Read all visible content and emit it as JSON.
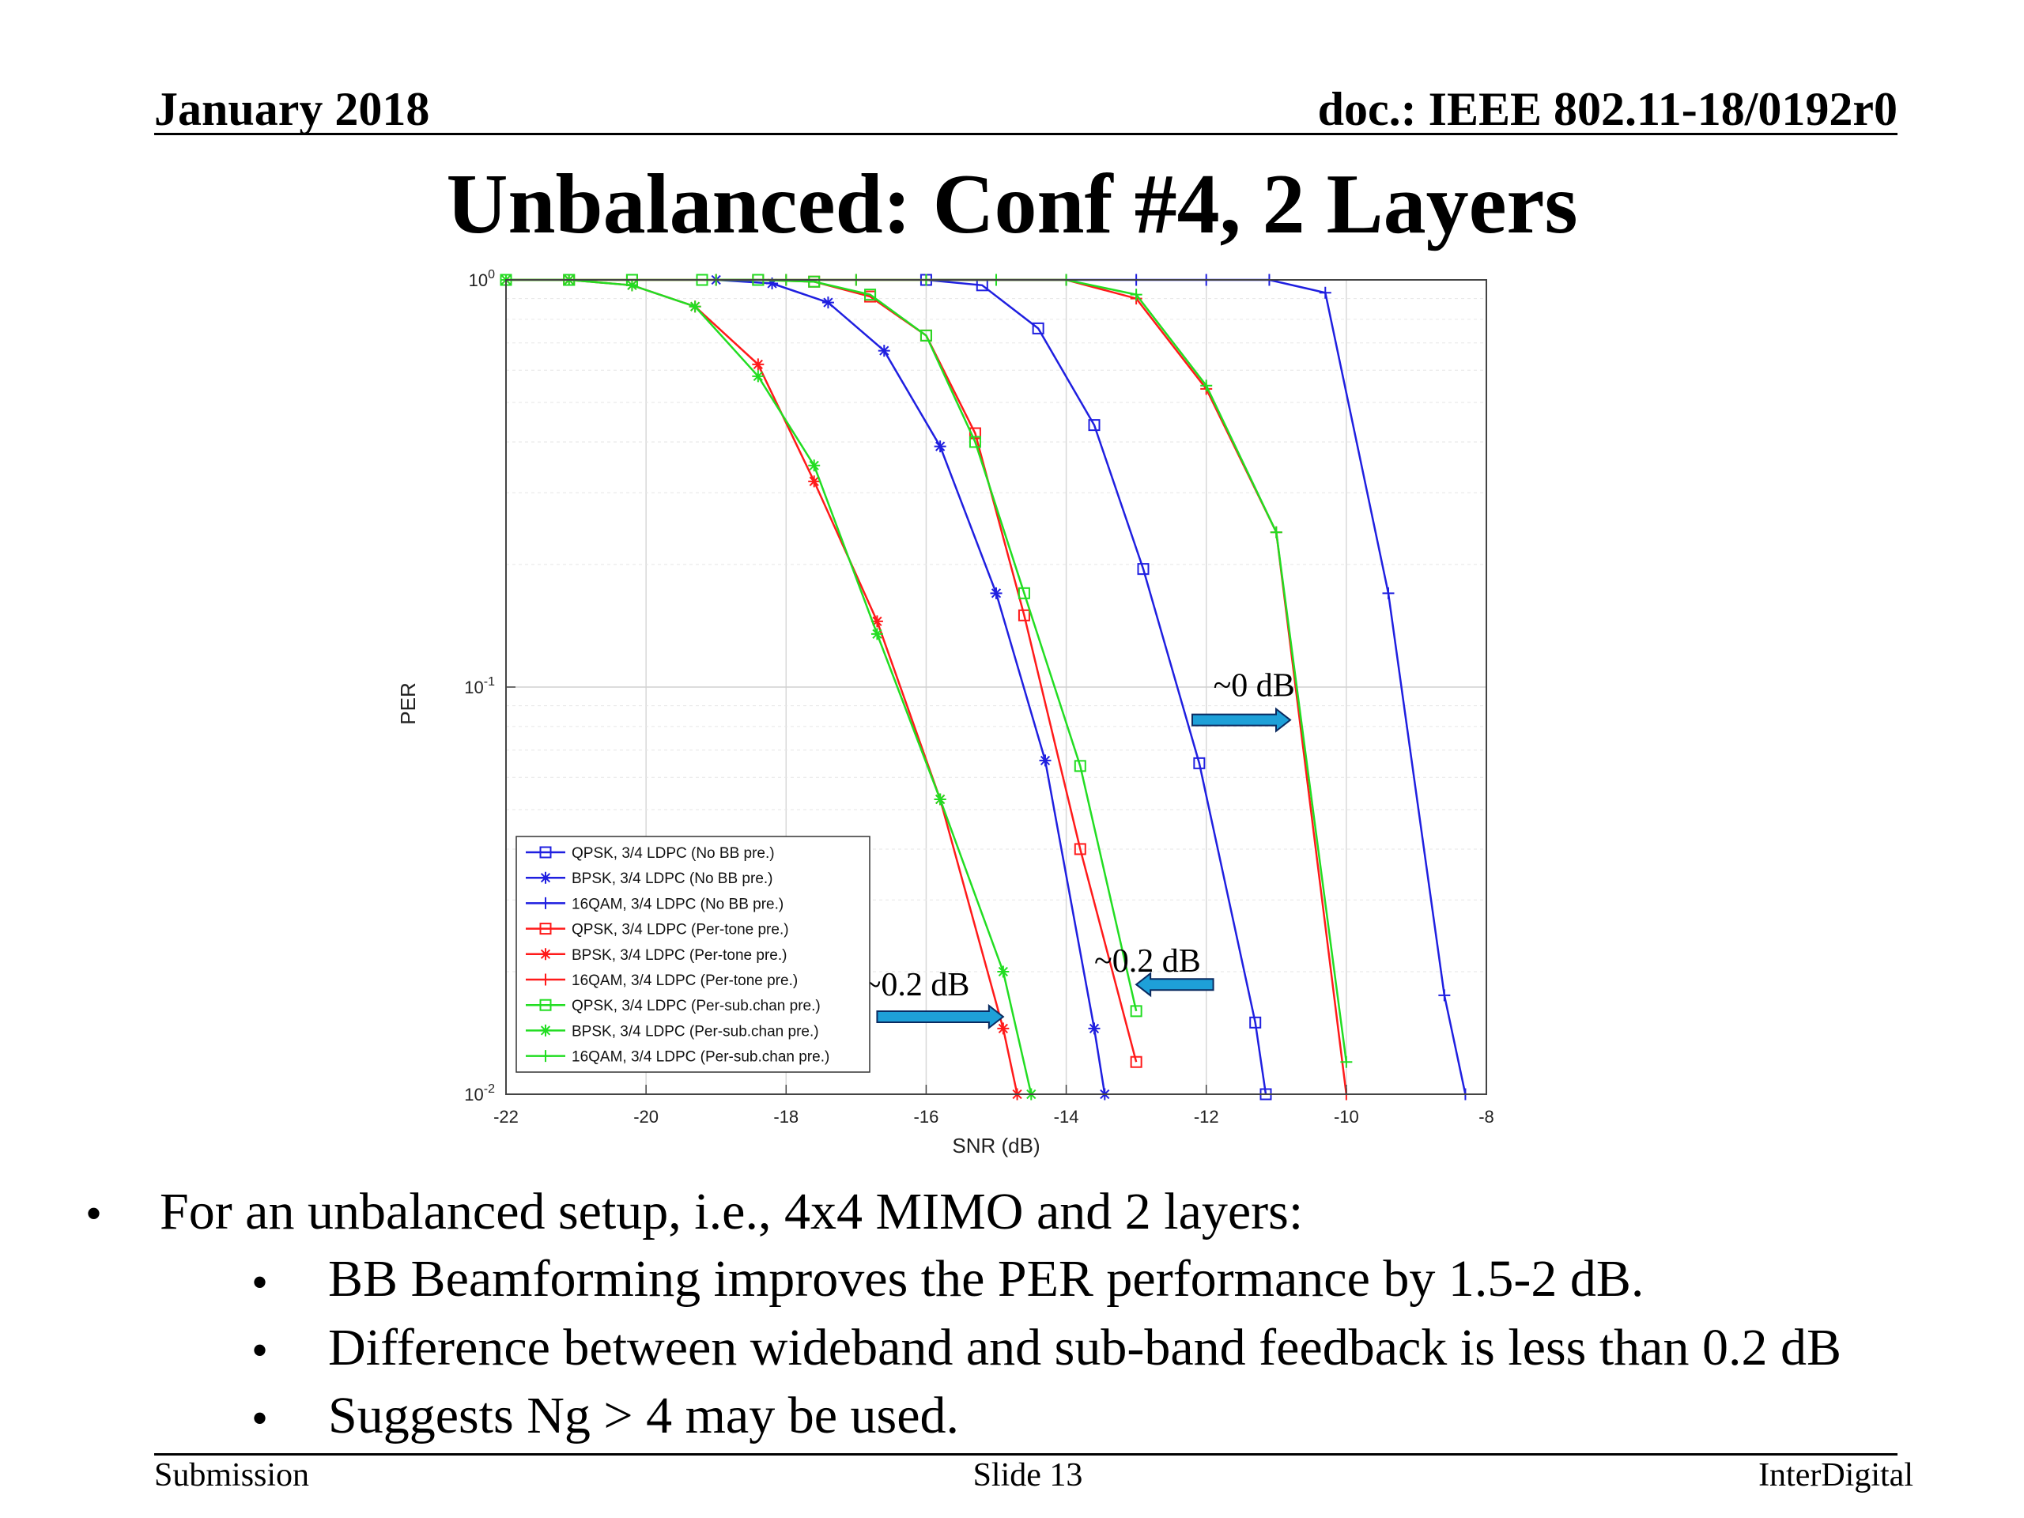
{
  "header": {
    "date": "January 2018",
    "doc": "doc.: IEEE 802.11-18/0192r0"
  },
  "title": "Unbalanced: Conf #4, 2 Layers",
  "bullets": {
    "main": "For an unbalanced setup, i.e., 4x4 MIMO and 2 layers:",
    "sub": [
      "BB Beamforming improves the PER performance by 1.5-2 dB.",
      "Difference between wideband and sub-band feedback is less than 0.2 dB",
      "Suggests Ng > 4 may be used."
    ]
  },
  "footer": {
    "left": "Submission",
    "center": "Slide 13",
    "right": "InterDigital"
  },
  "chart_data": {
    "type": "line",
    "xlabel": "SNR (dB)",
    "ylabel": "PER",
    "xlim": [
      -22,
      -8
    ],
    "ylim": [
      0.01,
      1
    ],
    "yscale": "log",
    "xticks": [
      "-22",
      "-20",
      "-18",
      "-16",
      "-14",
      "-12",
      "-10",
      "-8"
    ],
    "yticks": [
      {
        "value": 1,
        "base": "10",
        "exp": "0"
      },
      {
        "value": 0.1,
        "base": "10",
        "exp": "-1"
      },
      {
        "value": 0.01,
        "base": "10",
        "exp": "-2"
      }
    ],
    "grid": true,
    "legend": "lower-left",
    "series": [
      {
        "name": "QPSK, 3/4 LDPC (No BB pre.)",
        "color": "#1f1fe0",
        "marker": "square",
        "x": [
          -16,
          -15.2,
          -14.4,
          -13.6,
          -12.9,
          -12.1,
          -11.3,
          -11.15
        ],
        "y": [
          1.0,
          0.97,
          0.76,
          0.44,
          0.195,
          0.065,
          0.015,
          0.01
        ]
      },
      {
        "name": "BPSK, 3/4 LDPC (No BB pre.)",
        "color": "#1f1fe0",
        "marker": "asterisk",
        "x": [
          -19,
          -18.2,
          -17.4,
          -16.6,
          -15.8,
          -15.0,
          -14.3,
          -13.6,
          -13.45
        ],
        "y": [
          1.0,
          0.98,
          0.88,
          0.67,
          0.39,
          0.17,
          0.066,
          0.0145,
          0.01
        ]
      },
      {
        "name": "16QAM, 3/4 LDPC (No BB pre.)",
        "color": "#1f1fe0",
        "marker": "plus",
        "x": [
          -16,
          -15,
          -14,
          -13,
          -12,
          -11.1,
          -10.3,
          -9.4,
          -8.6,
          -8.3
        ],
        "y": [
          1.0,
          1.0,
          1.0,
          1.0,
          1.0,
          1.0,
          0.93,
          0.17,
          0.0175,
          0.01
        ]
      },
      {
        "name": "QPSK, 3/4 LDPC (Per-tone pre.)",
        "color": "#ff1a1a",
        "marker": "square",
        "x": [
          -22,
          -21.1,
          -20.2,
          -19.2,
          -18.4,
          -17.6,
          -16.8,
          -16.0,
          -15.3,
          -14.6,
          -13.8,
          -13.0
        ],
        "y": [
          1.0,
          1.0,
          1.0,
          1.0,
          1.0,
          0.99,
          0.91,
          0.73,
          0.42,
          0.15,
          0.04,
          0.012
        ]
      },
      {
        "name": "BPSK, 3/4 LDPC (Per-tone pre.)",
        "color": "#ff1a1a",
        "marker": "asterisk",
        "x": [
          -22,
          -21.1,
          -20.2,
          -19.3,
          -18.4,
          -17.6,
          -16.7,
          -15.8,
          -14.9,
          -14.7
        ],
        "y": [
          1.0,
          1.0,
          0.97,
          0.86,
          0.62,
          0.32,
          0.145,
          0.053,
          0.0145,
          0.01
        ]
      },
      {
        "name": "16QAM, 3/4 LDPC (Per-tone pre.)",
        "color": "#ff1a1a",
        "marker": "plus",
        "x": [
          -19,
          -18,
          -17,
          -16,
          -15,
          -14,
          -13,
          -12,
          -11,
          -10
        ],
        "y": [
          1.0,
          1.0,
          1.0,
          1.0,
          1.0,
          1.0,
          0.9,
          0.54,
          0.24,
          0.01
        ]
      },
      {
        "name": "QPSK, 3/4 LDPC (Per-sub.chan pre.)",
        "color": "#22dd22",
        "marker": "square",
        "x": [
          -22,
          -21.1,
          -20.2,
          -19.2,
          -18.4,
          -17.6,
          -16.8,
          -16.0,
          -15.3,
          -14.6,
          -13.8,
          -13.0
        ],
        "y": [
          1.0,
          1.0,
          1.0,
          1.0,
          1.0,
          0.99,
          0.92,
          0.73,
          0.4,
          0.17,
          0.064,
          0.016
        ]
      },
      {
        "name": "BPSK, 3/4 LDPC (Per-sub.chan pre.)",
        "color": "#22dd22",
        "marker": "asterisk",
        "x": [
          -22,
          -21.1,
          -20.2,
          -19.3,
          -18.4,
          -17.6,
          -16.7,
          -15.8,
          -14.9,
          -14.5
        ],
        "y": [
          1.0,
          1.0,
          0.97,
          0.86,
          0.58,
          0.35,
          0.135,
          0.053,
          0.02,
          0.01
        ]
      },
      {
        "name": "16QAM, 3/4 LDPC (Per-sub.chan pre.)",
        "color": "#22dd22",
        "marker": "plus",
        "x": [
          -19,
          -18,
          -17,
          -16,
          -15,
          -14,
          -13,
          -12,
          -11,
          -10
        ],
        "y": [
          1.0,
          1.0,
          1.0,
          1.0,
          1.0,
          1.0,
          0.92,
          0.55,
          0.24,
          0.012
        ]
      }
    ],
    "annotations": [
      {
        "text": "~0 dB",
        "x": -11.9,
        "y": 0.095,
        "arrow": "right",
        "ax1": -12.2,
        "ax2": -10.8,
        "ay": 0.083
      },
      {
        "text": "~0.2 dB",
        "x": -13.6,
        "y": 0.02,
        "arrow": "left",
        "ax1": -11.9,
        "ax2": -13.0,
        "ay": 0.0186
      },
      {
        "text": "~0.2 dB",
        "x": -16.9,
        "y": 0.0175,
        "arrow": "right",
        "ax1": -16.7,
        "ax2": -14.9,
        "ay": 0.0155
      }
    ]
  }
}
